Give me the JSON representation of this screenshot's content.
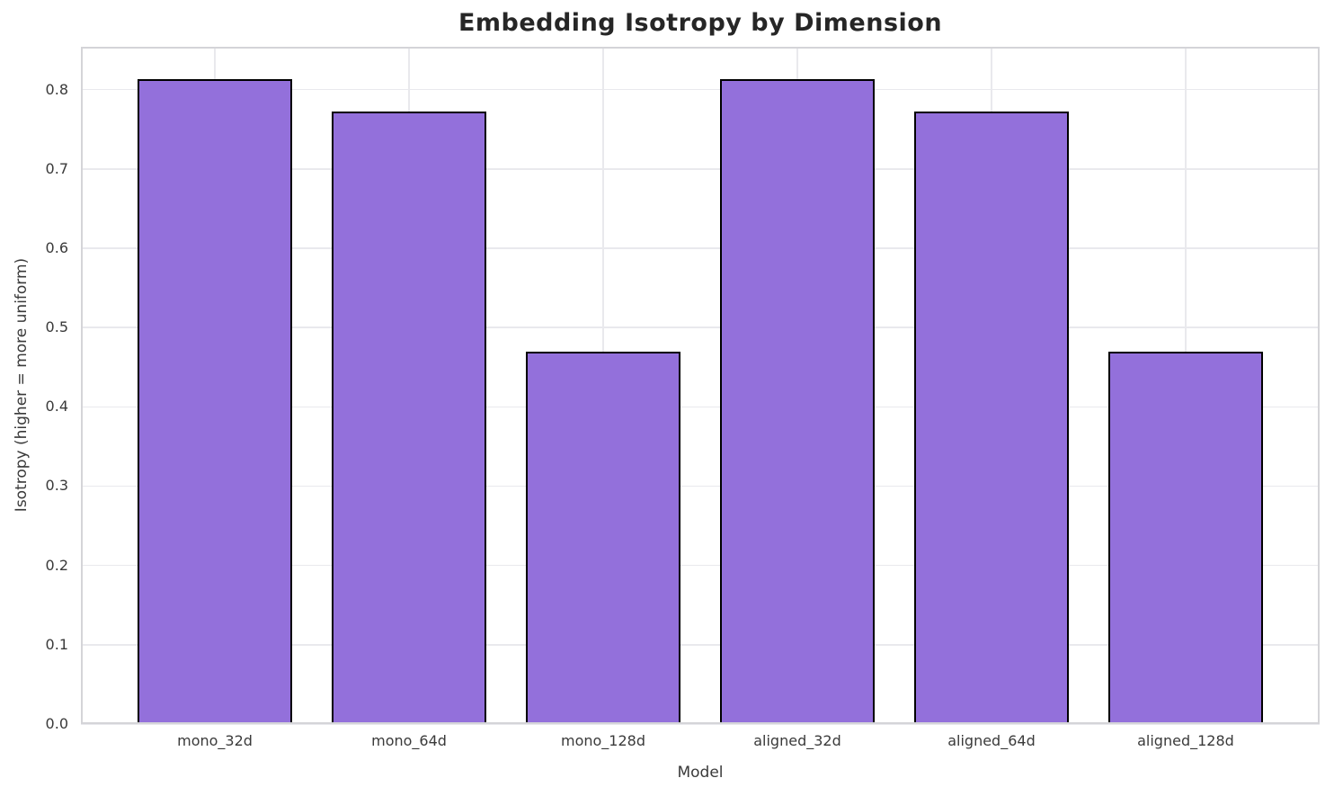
{
  "chart_data": {
    "type": "bar",
    "title": "Embedding Isotropy by Dimension",
    "xlabel": "Model",
    "ylabel": "Isotropy (higher = more uniform)",
    "categories": [
      "mono_32d",
      "mono_64d",
      "mono_128d",
      "aligned_32d",
      "aligned_64d",
      "aligned_128d"
    ],
    "values": [
      0.813,
      0.772,
      0.47,
      0.813,
      0.772,
      0.47
    ],
    "ylim": [
      0,
      0.854
    ],
    "yticks": [
      0.0,
      0.1,
      0.2,
      0.3,
      0.4,
      0.5,
      0.6,
      0.7,
      0.8
    ],
    "ytick_labels": [
      "0.0",
      "0.1",
      "0.2",
      "0.3",
      "0.4",
      "0.5",
      "0.6",
      "0.7",
      "0.8"
    ],
    "grid": true,
    "legend_position": "none",
    "colors": {
      "bar_fill": "#9370DB",
      "bar_edge": "#000000",
      "grid_line": "#e9e9ed",
      "spine": "#d4d4d8",
      "title_text": "#262626",
      "axis_text": "#3a3a3a"
    }
  }
}
